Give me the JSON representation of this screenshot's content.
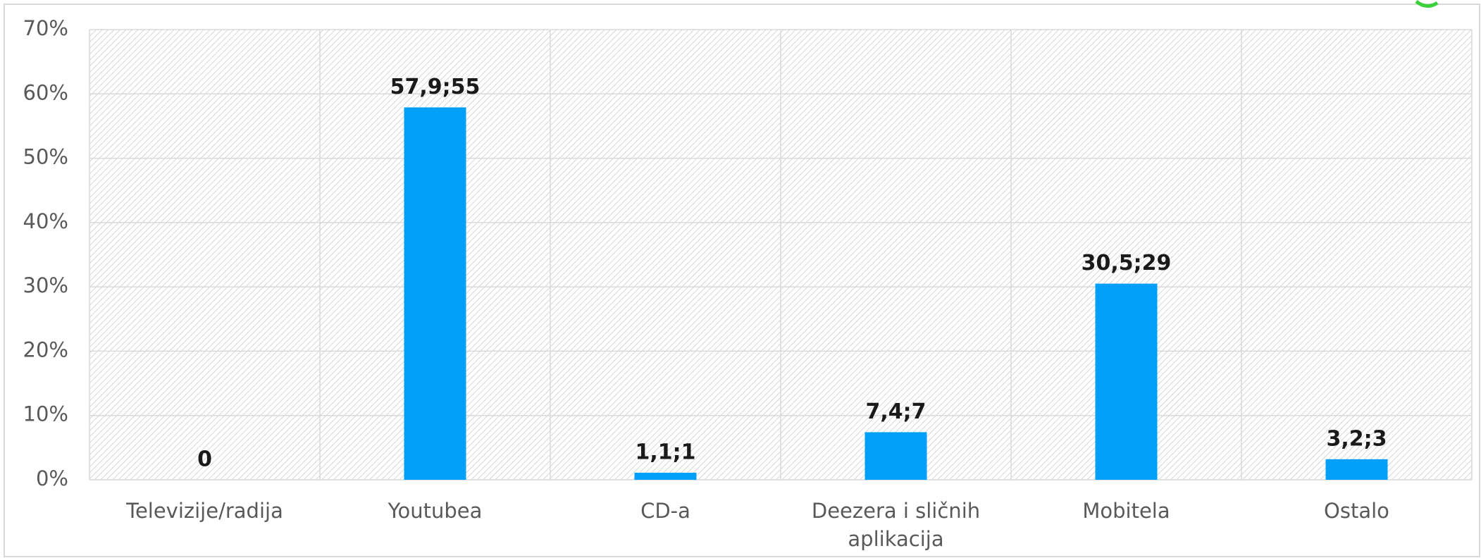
{
  "chart_data": {
    "type": "bar",
    "categories": [
      "Televizije/radija",
      "Youtubea",
      "CD-a",
      "Deezera i sličnih aplikacija",
      "Mobitela",
      "Ostalo"
    ],
    "values": [
      0,
      57.9,
      1.1,
      7.4,
      30.5,
      3.2
    ],
    "value_labels": [
      "0",
      "57,9;55",
      "1,1;1",
      "7,4;7",
      "30,5;29",
      "3,2;3"
    ],
    "color": "#00a0f8",
    "ylim": [
      0,
      70
    ],
    "yticks": [
      {
        "value": 0,
        "label": "0%"
      },
      {
        "value": 10,
        "label": "10%"
      },
      {
        "value": 20,
        "label": "20%"
      },
      {
        "value": 30,
        "label": "30%"
      },
      {
        "value": 40,
        "label": "40%"
      },
      {
        "value": 50,
        "label": "50%"
      },
      {
        "value": 60,
        "label": "60%"
      },
      {
        "value": 70,
        "label": "70%"
      }
    ],
    "grid": true
  }
}
